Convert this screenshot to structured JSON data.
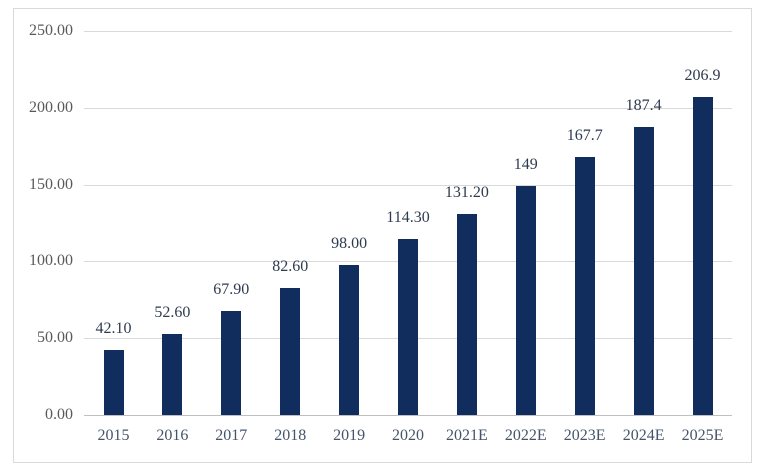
{
  "chart_data": {
    "type": "bar",
    "title": "",
    "xlabel": "",
    "ylabel": "",
    "legend": "none",
    "grid": "horizontal",
    "categories": [
      "2015",
      "2016",
      "2017",
      "2018",
      "2019",
      "2020",
      "2021E",
      "2022E",
      "2023E",
      "2024E",
      "2025E"
    ],
    "values": [
      42.1,
      52.6,
      67.9,
      82.6,
      98.0,
      114.3,
      131.2,
      149,
      167.7,
      187.4,
      206.9
    ],
    "data_labels": [
      "42.10",
      "52.60",
      "67.90",
      "82.60",
      "98.00",
      "114.30",
      "131.20",
      "149",
      "167.7",
      "187.4",
      "206.9"
    ],
    "y_tick_values": [
      0,
      50,
      100,
      150,
      200,
      250
    ],
    "y_ticks": [
      "0.00",
      "50.00",
      "100.00",
      "150.00",
      "200.00",
      "250.00"
    ],
    "ylim": [
      0,
      250
    ],
    "colors": {
      "bar": "#112D5D",
      "gridline": "#D9D9D9",
      "axis_line": "#BFBFBF",
      "y_tick_label": "#595959",
      "x_tick_label": "#44546A",
      "data_label": "#2E3A4E",
      "frame_border": "#D9D9D9",
      "background": "#FFFFFF"
    }
  }
}
